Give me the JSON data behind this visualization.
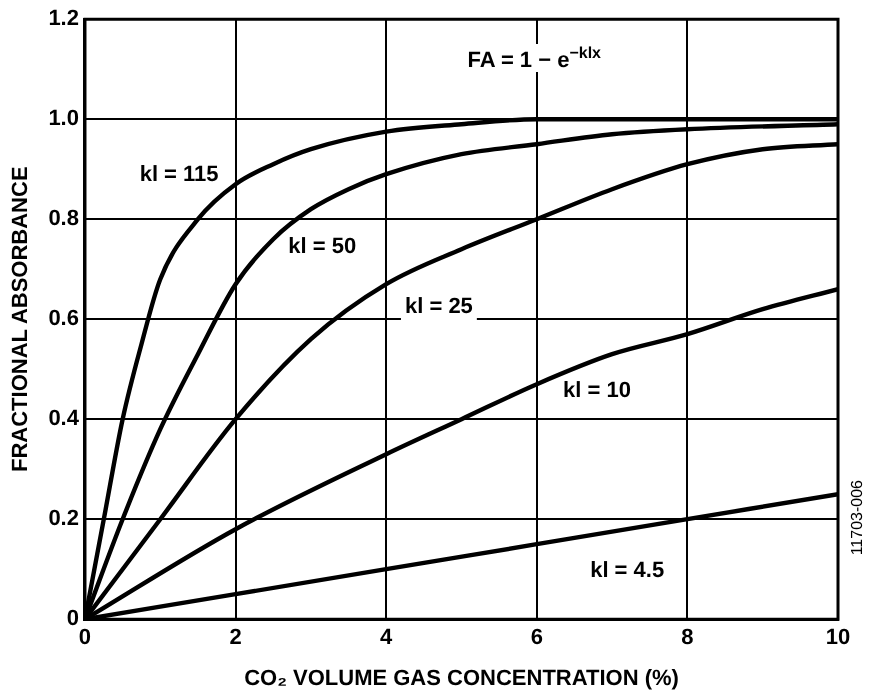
{
  "chart_data": {
    "type": "line",
    "xlabel": "CO₂ VOLUME GAS CONCENTRATION (%)",
    "ylabel": "FRACTIONAL ABSORBANCE",
    "xlim": [
      0,
      10
    ],
    "xticks": [
      0,
      2,
      4,
      6,
      8,
      10
    ],
    "ylim": [
      0,
      1.2
    ],
    "yticks": [
      0,
      {
        "value": 0.2,
        "label": "0.2"
      },
      {
        "value": 0.4,
        "label": "0.4"
      },
      {
        "value": 0.6,
        "label": "0.6"
      },
      {
        "value": 0.8,
        "label": "0.8"
      },
      {
        "value": 1,
        "label": "1.0"
      },
      {
        "value": 1.2,
        "label": "1.2"
      }
    ],
    "grid": true,
    "legend": false,
    "marker": "none",
    "line_style": "solid",
    "annotations": [
      "FA = 1 − e$^{−klx}$",
      "11703-006"
    ],
    "series": [
      {
        "name": "kl = 115",
        "color": "#000000",
        "x": [
          0,
          0.25,
          0.5,
          0.75,
          1,
          1.5,
          2,
          2.5,
          3,
          4,
          5,
          6,
          8,
          10
        ],
        "values": [
          0,
          0.2,
          0.4,
          0.55,
          0.68,
          0.8,
          0.87,
          0.91,
          0.94,
          0.975,
          0.99,
          1,
          1,
          1
        ]
      },
      {
        "name": "kl = 50",
        "color": "#000000",
        "x": [
          0,
          0.5,
          1,
          1.5,
          2,
          2.5,
          3,
          3.5,
          4,
          5,
          6,
          7,
          8,
          10
        ],
        "values": [
          0,
          0.2,
          0.38,
          0.53,
          0.67,
          0.76,
          0.82,
          0.86,
          0.89,
          0.93,
          0.95,
          0.97,
          0.98,
          0.99
        ]
      },
      {
        "name": "kl = 25",
        "color": "#000000",
        "x": [
          0,
          1,
          2,
          3,
          4,
          5,
          6,
          7,
          8,
          9,
          10
        ],
        "values": [
          0,
          0.2,
          0.4,
          0.56,
          0.67,
          0.74,
          0.8,
          0.86,
          0.91,
          0.94,
          0.95
        ]
      },
      {
        "name": "kl = 10",
        "color": "#000000",
        "x": [
          0,
          2,
          4,
          5,
          6,
          7,
          8,
          9,
          10
        ],
        "values": [
          0,
          0.18,
          0.33,
          0.4,
          0.47,
          0.53,
          0.57,
          0.62,
          0.66
        ]
      },
      {
        "name": "kl = 4.5",
        "color": "#000000",
        "x": [
          0,
          2,
          4,
          6,
          8,
          10
        ],
        "values": [
          0,
          0.05,
          0.1,
          0.15,
          0.2,
          0.25
        ]
      }
    ]
  }
}
